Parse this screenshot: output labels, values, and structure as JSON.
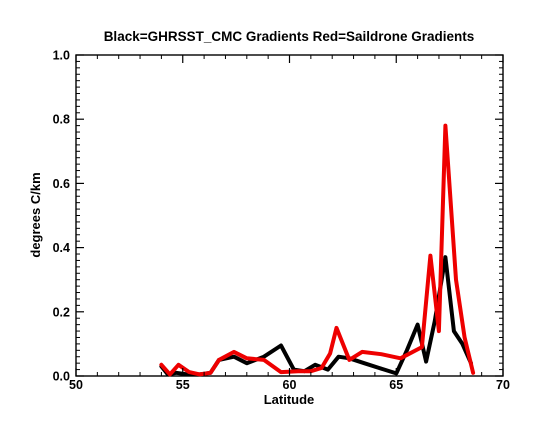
{
  "chart_data": {
    "type": "line",
    "title": "Black=GHRSST_CMC Gradients Red=Saildrone Gradients",
    "xlabel": "Latitude",
    "ylabel": "degrees C/km",
    "xlim": [
      50,
      70
    ],
    "ylim": [
      0,
      1.0
    ],
    "xticks": [
      50,
      55,
      60,
      65,
      70
    ],
    "yticks": [
      0.0,
      0.2,
      0.4,
      0.6,
      0.8,
      1.0
    ],
    "xtick_labels": [
      "50",
      "55",
      "60",
      "65",
      "70"
    ],
    "ytick_labels": [
      "0.0",
      "0.2",
      "0.4",
      "0.6",
      "0.8",
      "1.0"
    ],
    "grid": false,
    "series": [
      {
        "color": "#000000",
        "x": [
          54.0,
          54.3,
          54.7,
          55.2,
          55.8,
          56.3,
          56.7,
          57.4,
          58.0,
          58.8,
          59.6,
          60.2,
          60.7,
          61.2,
          61.8,
          62.3,
          62.8,
          63.5,
          64.2,
          65.0,
          65.5,
          66.0,
          66.4,
          66.8,
          67.3,
          67.7,
          68.1,
          68.5
        ],
        "y": [
          0.03,
          0.005,
          0.01,
          0.005,
          0.005,
          0.01,
          0.05,
          0.06,
          0.04,
          0.06,
          0.095,
          0.02,
          0.015,
          0.035,
          0.02,
          0.06,
          0.055,
          0.04,
          0.025,
          0.008,
          0.08,
          0.16,
          0.045,
          0.17,
          0.37,
          0.14,
          0.1,
          0.04
        ]
      },
      {
        "color": "#ee0000",
        "x": [
          54.0,
          54.4,
          54.8,
          55.3,
          55.8,
          56.3,
          56.7,
          57.4,
          58.0,
          58.8,
          59.6,
          60.4,
          61.0,
          61.5,
          61.9,
          62.2,
          62.8,
          63.4,
          64.3,
          65.2,
          66.2,
          66.6,
          67.0,
          67.3,
          67.8,
          68.2,
          68.6
        ],
        "y": [
          0.035,
          0.005,
          0.035,
          0.012,
          0.005,
          0.01,
          0.05,
          0.075,
          0.055,
          0.05,
          0.012,
          0.015,
          0.015,
          0.025,
          0.07,
          0.15,
          0.05,
          0.075,
          0.068,
          0.055,
          0.09,
          0.375,
          0.14,
          0.78,
          0.3,
          0.12,
          0.01
        ]
      }
    ]
  }
}
